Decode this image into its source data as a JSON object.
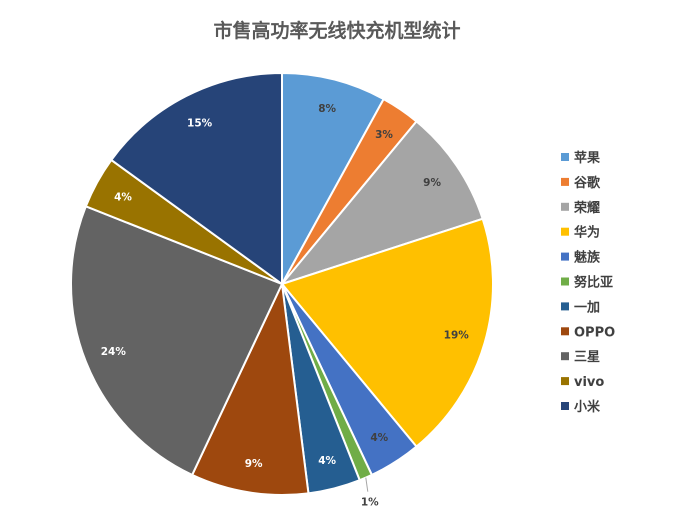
{
  "chart_data": {
    "type": "pie",
    "title": "市售高功率无线快充机型统计",
    "categories": [
      "苹果",
      "谷歌",
      "荣耀",
      "华为",
      "魅族",
      "努比亚",
      "一加",
      "OPPO",
      "三星",
      "vivo",
      "小米"
    ],
    "values": [
      8,
      3,
      9,
      19,
      4,
      1,
      4,
      9,
      24,
      4,
      15
    ],
    "labels": [
      "8%",
      "3%",
      "9%",
      "19%",
      "4%",
      "1%",
      "4%",
      "9%",
      "24%",
      "4%",
      "15%"
    ],
    "colors": [
      "#5b9bd5",
      "#ed7d31",
      "#a5a5a5",
      "#ffc000",
      "#4472c4",
      "#70ad47",
      "#255e91",
      "#9e480e",
      "#636363",
      "#997300",
      "#264478"
    ],
    "legend_position": "right"
  }
}
